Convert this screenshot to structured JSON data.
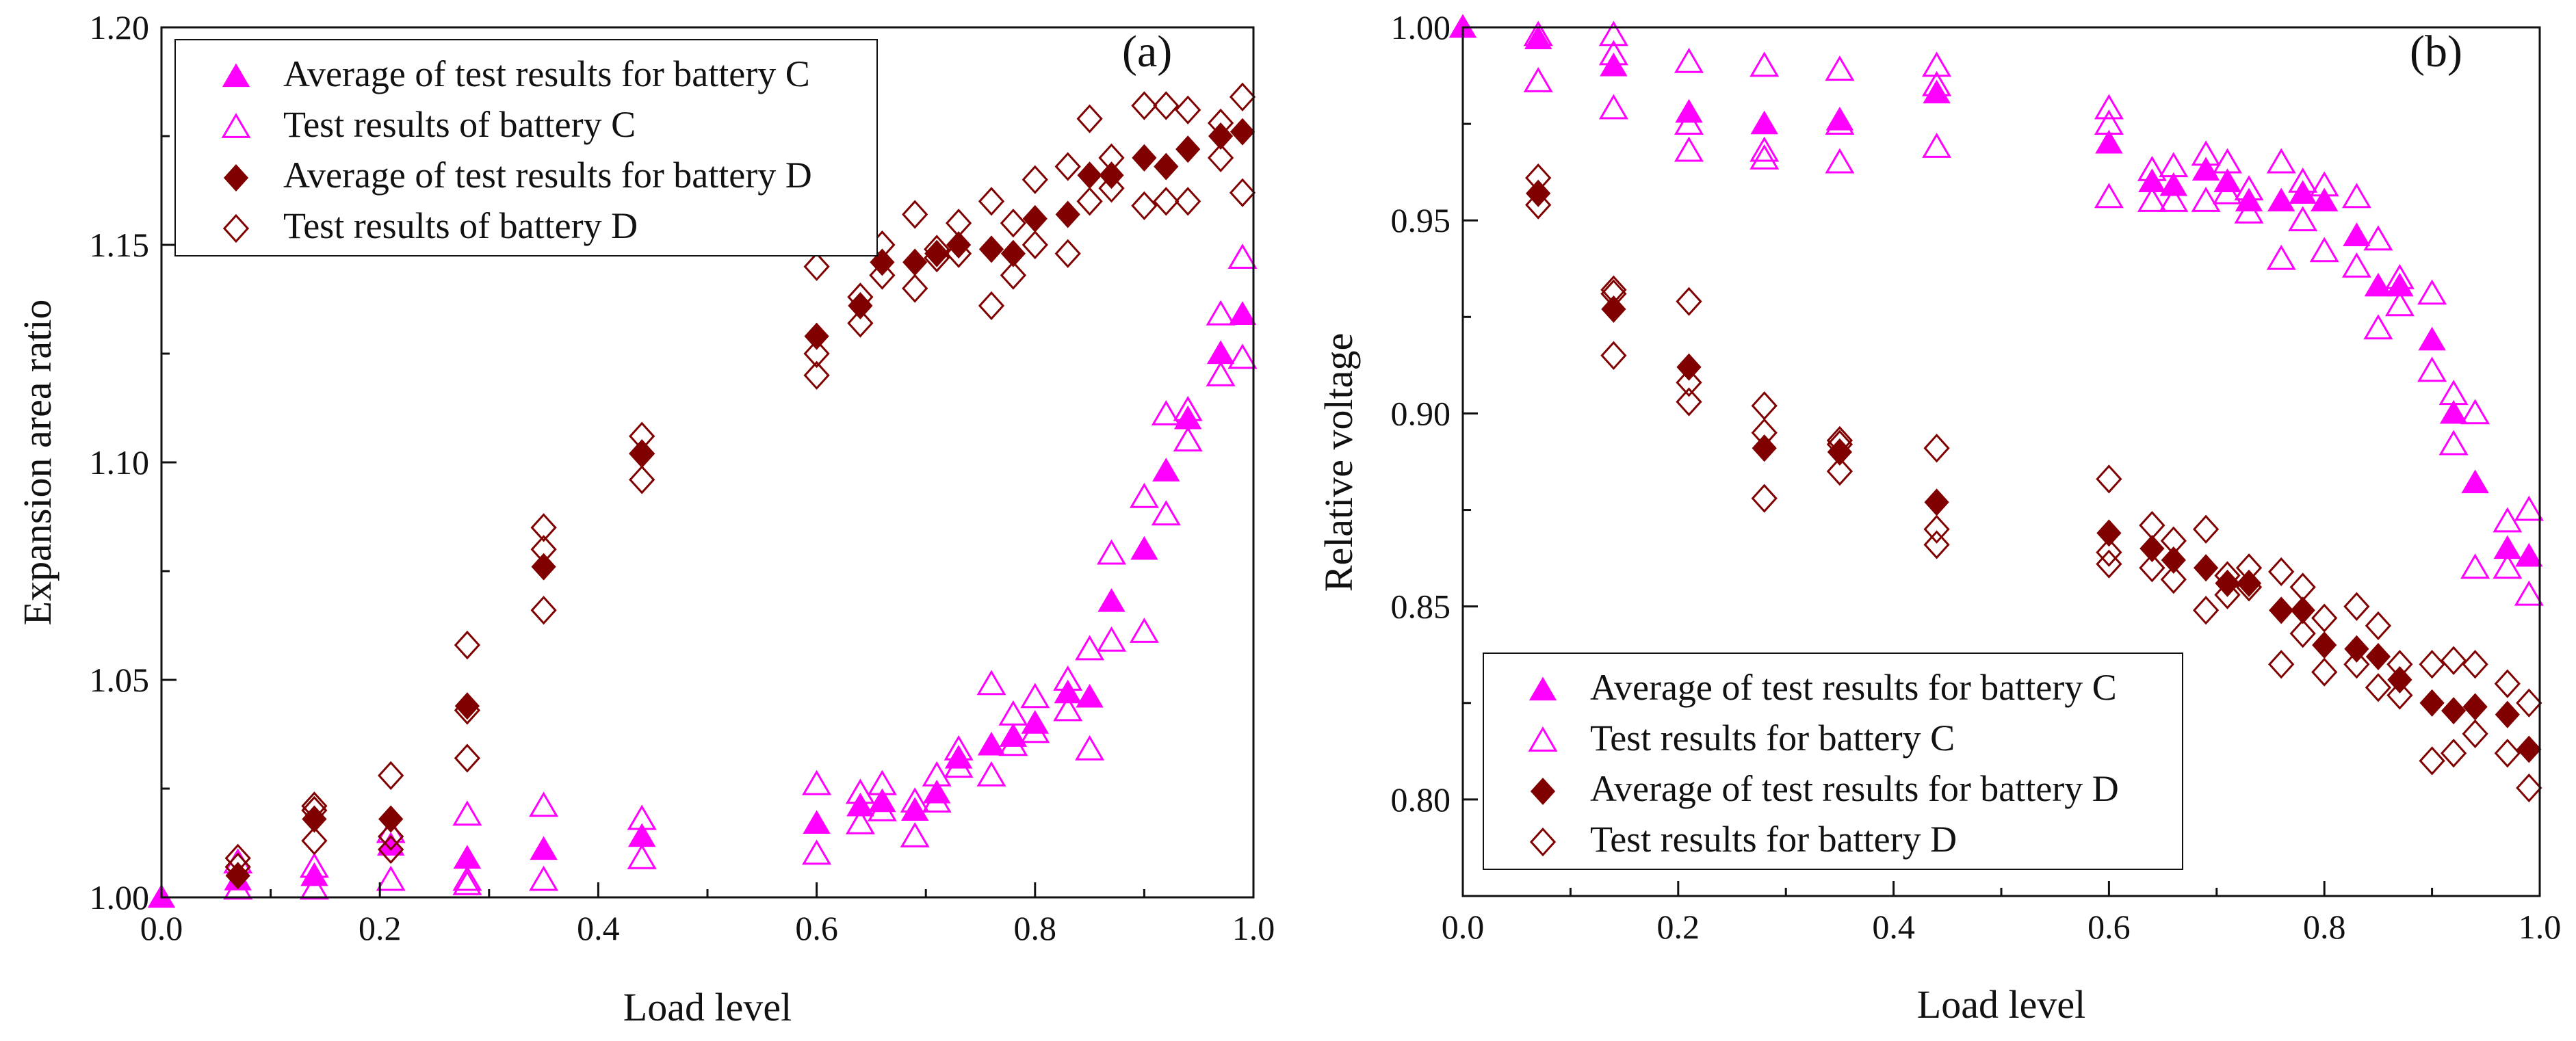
{
  "chart_data": [
    {
      "type": "scatter",
      "panel_label": "(a)",
      "xlabel": "Load level",
      "ylabel": "Expansion area ratio",
      "xlim": [
        0,
        1
      ],
      "ylim": [
        1.0,
        1.2
      ],
      "xticks": [
        0.0,
        0.2,
        0.4,
        0.6,
        0.8,
        1.0
      ],
      "xtick_labels": [
        "0.0",
        "0.2",
        "0.4",
        "0.6",
        "0.8",
        "1.0"
      ],
      "yticks": [
        1.0,
        1.05,
        1.1,
        1.15,
        1.2
      ],
      "ytick_labels": [
        "1.00",
        "1.05",
        "1.10",
        "1.15",
        "1.20"
      ],
      "legend_position": "top-left",
      "series": [
        {
          "name": "Average of test results for battery C",
          "marker": "filled-triangle",
          "color": "#ff00ff",
          "x": [
            0,
            0.07,
            0.14,
            0.21,
            0.28,
            0.35,
            0.44,
            0.6,
            0.64,
            0.66,
            0.69,
            0.71,
            0.73,
            0.76,
            0.78,
            0.8,
            0.83,
            0.85,
            0.87,
            0.9,
            0.92,
            0.94,
            0.97,
            0.99
          ],
          "y": [
            1.0,
            1.004,
            1.005,
            1.012,
            1.009,
            1.011,
            1.014,
            1.017,
            1.021,
            1.022,
            1.02,
            1.024,
            1.032,
            1.035,
            1.037,
            1.04,
            1.047,
            1.046,
            1.068,
            1.08,
            1.098,
            1.11,
            1.125,
            1.134
          ]
        },
        {
          "name": "Test results of battery C",
          "marker": "open-triangle",
          "color": "#ff00ff",
          "x": [
            0.07,
            0.07,
            0.14,
            0.14,
            0.21,
            0.21,
            0.28,
            0.28,
            0.28,
            0.35,
            0.35,
            0.44,
            0.44,
            0.6,
            0.6,
            0.64,
            0.64,
            0.66,
            0.66,
            0.69,
            0.69,
            0.71,
            0.71,
            0.73,
            0.73,
            0.76,
            0.76,
            0.78,
            0.78,
            0.8,
            0.8,
            0.83,
            0.83,
            0.85,
            0.85,
            0.87,
            0.87,
            0.9,
            0.9,
            0.92,
            0.92,
            0.94,
            0.94,
            0.97,
            0.97,
            0.99,
            0.99
          ],
          "y": [
            1.008,
            1.002,
            1.007,
            1.002,
            1.015,
            1.004,
            1.019,
            1.004,
            1.003,
            1.021,
            1.004,
            1.018,
            1.009,
            1.026,
            1.01,
            1.024,
            1.017,
            1.026,
            1.02,
            1.022,
            1.014,
            1.028,
            1.022,
            1.034,
            1.03,
            1.049,
            1.028,
            1.042,
            1.035,
            1.046,
            1.038,
            1.05,
            1.043,
            1.057,
            1.034,
            1.079,
            1.059,
            1.092,
            1.061,
            1.111,
            1.088,
            1.112,
            1.105,
            1.134,
            1.12,
            1.147,
            1.124
          ]
        },
        {
          "name": "Average of test results for battery D",
          "marker": "filled-diamond",
          "color": "#800000",
          "x": [
            0.07,
            0.14,
            0.21,
            0.28,
            0.35,
            0.44,
            0.6,
            0.64,
            0.66,
            0.69,
            0.71,
            0.73,
            0.76,
            0.78,
            0.8,
            0.83,
            0.85,
            0.87,
            0.9,
            0.92,
            0.94,
            0.97,
            0.99
          ],
          "y": [
            1.005,
            1.018,
            1.018,
            1.044,
            1.076,
            1.102,
            1.129,
            1.136,
            1.146,
            1.146,
            1.148,
            1.15,
            1.149,
            1.148,
            1.156,
            1.157,
            1.166,
            1.166,
            1.17,
            1.168,
            1.172,
            1.175,
            1.176
          ]
        },
        {
          "name": "Test results of battery D",
          "marker": "open-diamond",
          "color": "#800000",
          "x": [
            0.07,
            0.07,
            0.14,
            0.14,
            0.14,
            0.21,
            0.21,
            0.21,
            0.28,
            0.28,
            0.28,
            0.35,
            0.35,
            0.35,
            0.44,
            0.44,
            0.44,
            0.6,
            0.6,
            0.6,
            0.64,
            0.64,
            0.66,
            0.66,
            0.69,
            0.69,
            0.71,
            0.71,
            0.73,
            0.73,
            0.76,
            0.76,
            0.78,
            0.78,
            0.8,
            0.8,
            0.83,
            0.83,
            0.85,
            0.85,
            0.87,
            0.87,
            0.9,
            0.9,
            0.92,
            0.92,
            0.94,
            0.94,
            0.97,
            0.97,
            0.99,
            0.99
          ],
          "y": [
            1.009,
            1.007,
            1.021,
            1.013,
            1.02,
            1.028,
            1.014,
            1.011,
            1.058,
            1.032,
            1.043,
            1.085,
            1.066,
            1.08,
            1.106,
            1.096,
            1.102,
            1.145,
            1.12,
            1.125,
            1.138,
            1.132,
            1.15,
            1.143,
            1.157,
            1.14,
            1.149,
            1.147,
            1.155,
            1.148,
            1.16,
            1.136,
            1.155,
            1.143,
            1.165,
            1.15,
            1.168,
            1.148,
            1.179,
            1.16,
            1.17,
            1.163,
            1.182,
            1.159,
            1.182,
            1.16,
            1.181,
            1.16,
            1.178,
            1.17,
            1.184,
            1.162
          ]
        }
      ]
    },
    {
      "type": "scatter",
      "panel_label": "(b)",
      "xlabel": "Load level",
      "ylabel": "Relative voltage",
      "xlim": [
        0,
        1
      ],
      "ylim": [
        0.775,
        1.0
      ],
      "xticks": [
        0.0,
        0.2,
        0.4,
        0.6,
        0.8,
        1.0
      ],
      "xtick_labels": [
        "0.0",
        "0.2",
        "0.4",
        "0.6",
        "0.8",
        "1.0"
      ],
      "yticks": [
        0.8,
        0.85,
        0.9,
        0.95,
        1.0
      ],
      "ytick_labels": [
        "0.80",
        "0.85",
        "0.90",
        "0.95",
        "1.00"
      ],
      "legend_position": "bottom-left",
      "series": [
        {
          "name": "Average of test results for battery C",
          "marker": "filled-triangle",
          "color": "#ff00ff",
          "x": [
            0,
            0.07,
            0.14,
            0.21,
            0.28,
            0.35,
            0.44,
            0.6,
            0.64,
            0.66,
            0.69,
            0.71,
            0.73,
            0.76,
            0.78,
            0.8,
            0.83,
            0.85,
            0.87,
            0.9,
            0.92,
            0.94,
            0.97,
            0.99
          ],
          "y": [
            1.0,
            0.997,
            0.99,
            0.978,
            0.975,
            0.976,
            0.983,
            0.97,
            0.96,
            0.959,
            0.963,
            0.96,
            0.955,
            0.955,
            0.957,
            0.955,
            0.946,
            0.933,
            0.933,
            0.919,
            0.9,
            0.882,
            0.865,
            0.863
          ]
        },
        {
          "name": "Test results for battery C",
          "marker": "open-triangle",
          "color": "#ff00ff",
          "x": [
            0.07,
            0.07,
            0.14,
            0.14,
            0.14,
            0.21,
            0.21,
            0.21,
            0.28,
            0.28,
            0.28,
            0.35,
            0.35,
            0.35,
            0.44,
            0.44,
            0.44,
            0.6,
            0.6,
            0.6,
            0.64,
            0.64,
            0.66,
            0.66,
            0.69,
            0.69,
            0.71,
            0.71,
            0.73,
            0.73,
            0.76,
            0.76,
            0.78,
            0.78,
            0.8,
            0.8,
            0.83,
            0.83,
            0.85,
            0.85,
            0.87,
            0.87,
            0.9,
            0.9,
            0.92,
            0.92,
            0.94,
            0.94,
            0.97,
            0.97,
            0.99,
            0.99
          ],
          "y": [
            0.998,
            0.986,
            0.998,
            0.979,
            0.993,
            0.991,
            0.968,
            0.975,
            0.99,
            0.966,
            0.968,
            0.989,
            0.965,
            0.975,
            0.99,
            0.969,
            0.985,
            0.979,
            0.956,
            0.975,
            0.963,
            0.955,
            0.964,
            0.955,
            0.967,
            0.955,
            0.965,
            0.957,
            0.958,
            0.952,
            0.965,
            0.94,
            0.96,
            0.95,
            0.959,
            0.942,
            0.956,
            0.938,
            0.945,
            0.922,
            0.935,
            0.928,
            0.931,
            0.911,
            0.905,
            0.892,
            0.9,
            0.86,
            0.872,
            0.86,
            0.875,
            0.853
          ]
        },
        {
          "name": "Average of test results for battery D",
          "marker": "filled-diamond",
          "color": "#800000",
          "x": [
            0.07,
            0.14,
            0.21,
            0.28,
            0.35,
            0.44,
            0.6,
            0.64,
            0.66,
            0.69,
            0.71,
            0.73,
            0.76,
            0.78,
            0.8,
            0.83,
            0.85,
            0.87,
            0.9,
            0.92,
            0.94,
            0.97,
            0.99
          ],
          "y": [
            0.957,
            0.927,
            0.912,
            0.891,
            0.89,
            0.877,
            0.869,
            0.865,
            0.862,
            0.86,
            0.856,
            0.856,
            0.849,
            0.849,
            0.84,
            0.839,
            0.837,
            0.831,
            0.825,
            0.823,
            0.824,
            0.822,
            0.813
          ]
        },
        {
          "name": "Test results for battery D",
          "marker": "open-diamond",
          "color": "#800000",
          "x": [
            0.07,
            0.07,
            0.14,
            0.14,
            0.14,
            0.21,
            0.21,
            0.21,
            0.28,
            0.28,
            0.28,
            0.35,
            0.35,
            0.35,
            0.44,
            0.44,
            0.44,
            0.6,
            0.6,
            0.6,
            0.64,
            0.64,
            0.66,
            0.66,
            0.69,
            0.69,
            0.71,
            0.71,
            0.73,
            0.73,
            0.76,
            0.76,
            0.78,
            0.78,
            0.8,
            0.8,
            0.83,
            0.83,
            0.85,
            0.85,
            0.87,
            0.87,
            0.9,
            0.9,
            0.92,
            0.92,
            0.94,
            0.94,
            0.97,
            0.97,
            0.99,
            0.99
          ],
          "y": [
            0.961,
            0.954,
            0.932,
            0.915,
            0.931,
            0.929,
            0.903,
            0.908,
            0.902,
            0.878,
            0.895,
            0.893,
            0.885,
            0.892,
            0.891,
            0.866,
            0.87,
            0.883,
            0.861,
            0.864,
            0.871,
            0.86,
            0.867,
            0.857,
            0.87,
            0.849,
            0.858,
            0.853,
            0.86,
            0.855,
            0.859,
            0.835,
            0.855,
            0.843,
            0.847,
            0.833,
            0.85,
            0.835,
            0.845,
            0.829,
            0.835,
            0.827,
            0.835,
            0.81,
            0.836,
            0.812,
            0.835,
            0.817,
            0.83,
            0.812,
            0.825,
            0.803
          ]
        }
      ]
    }
  ]
}
